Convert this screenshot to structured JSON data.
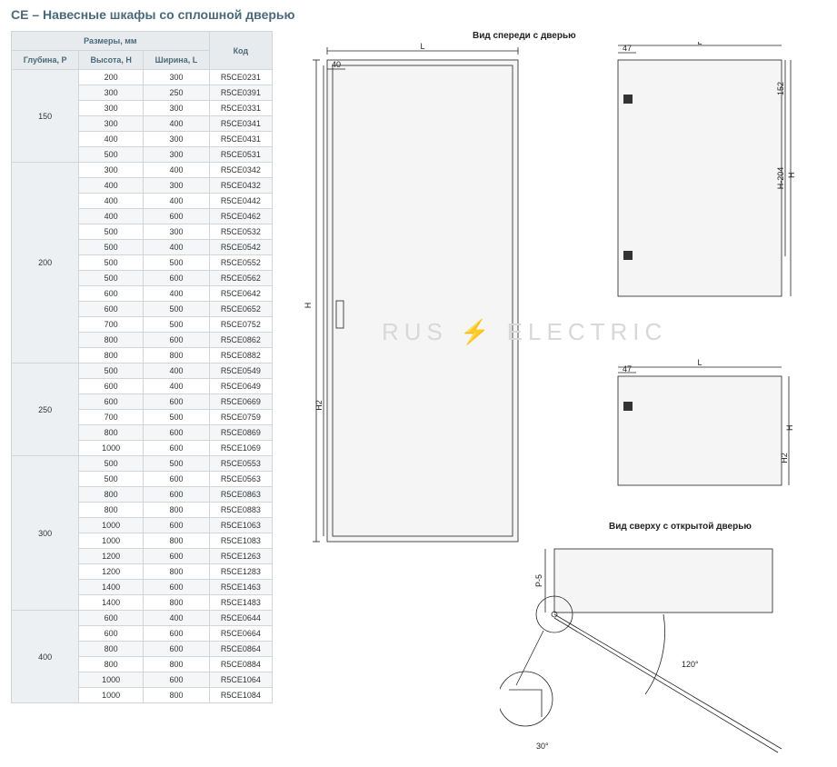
{
  "title": "CE – Навесные шкафы со сплошной дверью",
  "table": {
    "header_group": "Размеры, мм",
    "header_code": "Код",
    "col_depth": "Глубина, P",
    "col_height": "Высота, H",
    "col_width": "Ширина, L",
    "header_bg": "#e8ebee",
    "header_fg": "#4a6a7a",
    "border_color": "#d0d5da",
    "alt_row_bg": "#f4f6f8",
    "group_bg": "#edf0f3",
    "groups": [
      {
        "depth": "150",
        "rows": [
          {
            "h": "200",
            "l": "300",
            "code": "R5CE0231"
          },
          {
            "h": "300",
            "l": "250",
            "code": "R5CE0391"
          },
          {
            "h": "300",
            "l": "300",
            "code": "R5CE0331"
          },
          {
            "h": "300",
            "l": "400",
            "code": "R5CE0341"
          },
          {
            "h": "400",
            "l": "300",
            "code": "R5CE0431"
          },
          {
            "h": "500",
            "l": "300",
            "code": "R5CE0531"
          }
        ]
      },
      {
        "depth": "200",
        "rows": [
          {
            "h": "300",
            "l": "400",
            "code": "R5CE0342"
          },
          {
            "h": "400",
            "l": "300",
            "code": "R5CE0432"
          },
          {
            "h": "400",
            "l": "400",
            "code": "R5CE0442"
          },
          {
            "h": "400",
            "l": "600",
            "code": "R5CE0462"
          },
          {
            "h": "500",
            "l": "300",
            "code": "R5CE0532"
          },
          {
            "h": "500",
            "l": "400",
            "code": "R5CE0542"
          },
          {
            "h": "500",
            "l": "500",
            "code": "R5CE0552"
          },
          {
            "h": "500",
            "l": "600",
            "code": "R5CE0562"
          },
          {
            "h": "600",
            "l": "400",
            "code": "R5CE0642"
          },
          {
            "h": "600",
            "l": "500",
            "code": "R5CE0652"
          },
          {
            "h": "700",
            "l": "500",
            "code": "R5CE0752"
          },
          {
            "h": "800",
            "l": "600",
            "code": "R5CE0862"
          },
          {
            "h": "800",
            "l": "800",
            "code": "R5CE0882"
          }
        ]
      },
      {
        "depth": "250",
        "rows": [
          {
            "h": "500",
            "l": "400",
            "code": "R5CE0549"
          },
          {
            "h": "600",
            "l": "400",
            "code": "R5CE0649"
          },
          {
            "h": "600",
            "l": "600",
            "code": "R5CE0669"
          },
          {
            "h": "700",
            "l": "500",
            "code": "R5CE0759"
          },
          {
            "h": "800",
            "l": "600",
            "code": "R5CE0869"
          },
          {
            "h": "1000",
            "l": "600",
            "code": "R5CE1069"
          }
        ]
      },
      {
        "depth": "300",
        "rows": [
          {
            "h": "500",
            "l": "500",
            "code": "R5CE0553"
          },
          {
            "h": "500",
            "l": "600",
            "code": "R5CE0563"
          },
          {
            "h": "800",
            "l": "600",
            "code": "R5CE0863"
          },
          {
            "h": "800",
            "l": "800",
            "code": "R5CE0883"
          },
          {
            "h": "1000",
            "l": "600",
            "code": "R5CE1063"
          },
          {
            "h": "1000",
            "l": "800",
            "code": "R5CE1083"
          },
          {
            "h": "1200",
            "l": "600",
            "code": "R5CE1263"
          },
          {
            "h": "1200",
            "l": "800",
            "code": "R5CE1283"
          },
          {
            "h": "1400",
            "l": "600",
            "code": "R5CE1463"
          },
          {
            "h": "1400",
            "l": "800",
            "code": "R5CE1483"
          }
        ]
      },
      {
        "depth": "400",
        "rows": [
          {
            "h": "600",
            "l": "400",
            "code": "R5CE0644"
          },
          {
            "h": "600",
            "l": "600",
            "code": "R5CE0664"
          },
          {
            "h": "800",
            "l": "600",
            "code": "R5CE0864"
          },
          {
            "h": "800",
            "l": "800",
            "code": "R5CE0884"
          },
          {
            "h": "1000",
            "l": "600",
            "code": "R5CE1064"
          },
          {
            "h": "1000",
            "l": "800",
            "code": "R5CE1084"
          }
        ]
      }
    ]
  },
  "views": {
    "front": {
      "label": "Вид спереди с дверью"
    },
    "top": {
      "label": "Вид сверху с открытой дверью"
    }
  },
  "dims": {
    "L": "L",
    "H": "H",
    "H2": "H2",
    "P5": "P-5",
    "d40": "40",
    "d47": "47",
    "d152": "152",
    "H204": "H-204",
    "ang30": "30°",
    "ang120": "120°"
  },
  "watermark": "RUS  ⚡  ELECTRIC",
  "colors": {
    "title_fg": "#4a6a7a",
    "watermark_fg": "#d8d8d8",
    "line": "#222222",
    "panel_fill": "#f5f5f5",
    "background": "#ffffff"
  },
  "fontsize": {
    "title": 14,
    "table": 9,
    "labels": 10,
    "dim": 9
  }
}
